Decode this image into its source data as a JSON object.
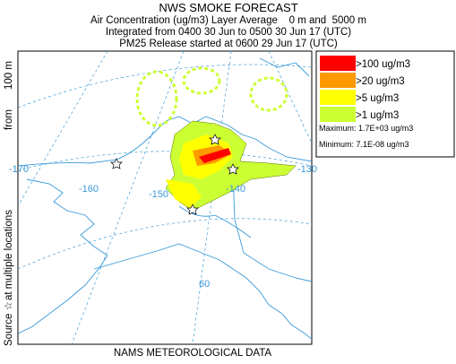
{
  "header": {
    "title": "NWS SMOKE FORECAST",
    "lines": [
      "Air Concentration (ug/m3) Layer Average    0 m and  5000 m",
      "Integrated from 0400 30 Jun to 0500 30 Jun 17 (UTC)",
      "PM25 Release started at 0600 29 Jun 17 (UTC)"
    ]
  },
  "side_label": [
    "Source ☆",
    "at multiple locations",
    "from",
    "100 m"
  ],
  "footer": "NAMS METEOROLOGICAL DATA",
  "map_labels": [
    "-170",
    "-160",
    "-150",
    "-140",
    "-130",
    "60"
  ],
  "legend": {
    "items": [
      {
        "label": ">100 ug/m3",
        "color": "#ff0000"
      },
      {
        "label": ">20 ug/m3",
        "color": "#ff9900"
      },
      {
        "label": ">5 ug/m3",
        "color": "#ffff00"
      },
      {
        "label": ">1 ug/m3",
        "color": "#ccff33"
      }
    ],
    "maximum": "Maximum: 1.7E+03 ug/m3",
    "minimum": "Minimum: 7.1E-08 ug/m3"
  }
}
